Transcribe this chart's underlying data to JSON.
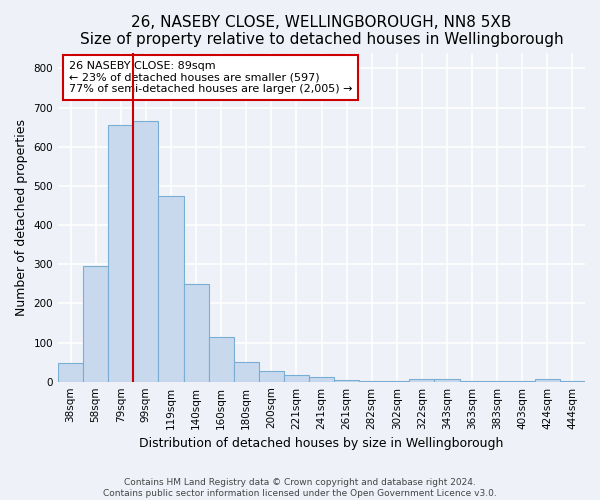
{
  "title": "26, NASEBY CLOSE, WELLINGBOROUGH, NN8 5XB",
  "subtitle": "Size of property relative to detached houses in Wellingborough",
  "xlabel": "Distribution of detached houses by size in Wellingborough",
  "ylabel": "Number of detached properties",
  "bar_labels": [
    "38sqm",
    "58sqm",
    "79sqm",
    "99sqm",
    "119sqm",
    "140sqm",
    "160sqm",
    "180sqm",
    "200sqm",
    "221sqm",
    "241sqm",
    "261sqm",
    "282sqm",
    "302sqm",
    "322sqm",
    "343sqm",
    "363sqm",
    "383sqm",
    "403sqm",
    "424sqm",
    "444sqm"
  ],
  "bar_values": [
    48,
    295,
    655,
    665,
    475,
    250,
    113,
    50,
    28,
    16,
    11,
    5,
    3,
    2,
    6,
    6,
    2,
    2,
    1,
    8,
    2
  ],
  "bar_color": "#c8d9ee",
  "bar_edge_color": "#7aadd4",
  "vline_color": "#cc0000",
  "vline_pos": 2.5,
  "annotation_text": "26 NASEBY CLOSE: 89sqm\n← 23% of detached houses are smaller (597)\n77% of semi-detached houses are larger (2,005) →",
  "annotation_box_color": "#ffffff",
  "annotation_box_edge": "#cc0000",
  "ylim": [
    0,
    840
  ],
  "yticks": [
    0,
    100,
    200,
    300,
    400,
    500,
    600,
    700,
    800
  ],
  "footer_line1": "Contains HM Land Registry data © Crown copyright and database right 2024.",
  "footer_line2": "Contains public sector information licensed under the Open Government Licence v3.0.",
  "bg_color": "#eef2f8",
  "plot_bg_color": "#eef2f8",
  "grid_color": "#ffffff",
  "title_fontsize": 11,
  "axis_label_fontsize": 9,
  "tick_fontsize": 7.5,
  "annotation_fontsize": 8,
  "footer_fontsize": 6.5
}
